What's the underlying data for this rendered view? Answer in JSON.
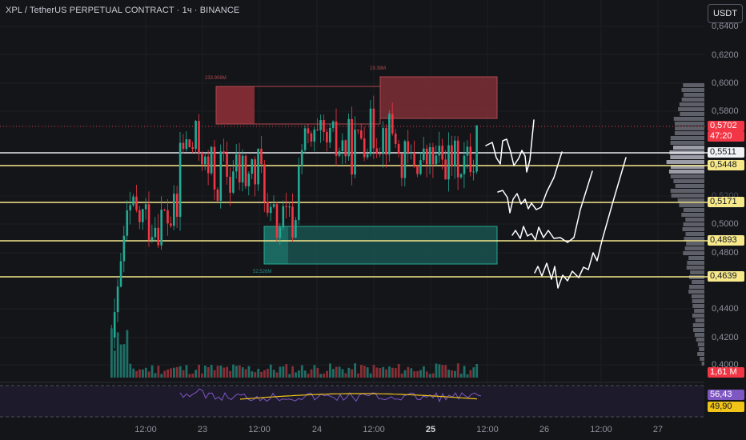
{
  "header": {
    "title": "XPL / TetherUS PERPETUAL CONTRACT · 1ч · BINANCE",
    "currency": "USDT"
  },
  "price_axis": {
    "labels": [
      "0,6400",
      "0,6200",
      "0,6000",
      "0,5800",
      "0,5200",
      "0,5000",
      "0,4800",
      "0,4400",
      "0,4200",
      "0,4000"
    ]
  },
  "badges": {
    "last_price": "0,5702",
    "countdown": "47:20",
    "level_1": "0,5511",
    "level_2": "0,5448",
    "level_3": "0,5171",
    "level_4": "0,4893",
    "level_5": "0,4639",
    "volume": "1,61 M",
    "rsi": "56,43",
    "rsi_ma": "49,90"
  },
  "annotations": {
    "vol_top_left": "233.906M",
    "vol_top_right": "19.39M",
    "vol_bottom": "52.526M"
  },
  "time_axis": {
    "labels": [
      {
        "text": "12:00",
        "bold": false
      },
      {
        "text": "23",
        "bold": false
      },
      {
        "text": "12:00",
        "bold": false
      },
      {
        "text": "24",
        "bold": false
      },
      {
        "text": "12:00",
        "bold": false
      },
      {
        "text": "25",
        "bold": true
      },
      {
        "text": "12:00",
        "bold": false
      },
      {
        "text": "26",
        "bold": false
      },
      {
        "text": "12:00",
        "bold": false
      },
      {
        "text": "27",
        "bold": false
      }
    ]
  },
  "colors": {
    "up": "#22ab94",
    "down": "#f23645",
    "level_yellow": "#f7e88a",
    "level_white": "#e8e8ec",
    "rsi_line": "#7e57c2",
    "rsi_ma": "#f0c419",
    "background": "#141519"
  }
}
